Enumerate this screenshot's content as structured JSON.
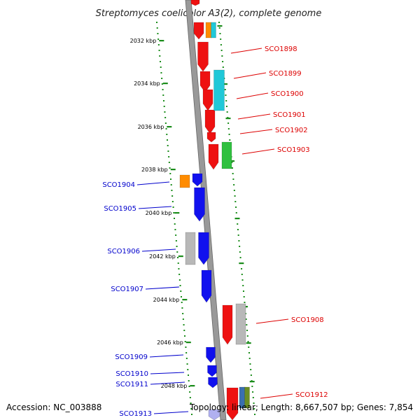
{
  "title": "Streptomyces coelicolor A3(2), complete genome",
  "accession": "Accession: NC_003888",
  "summary": "Topology: linear; Length: 8,667,507 bp; Genes: 7,854",
  "kbp_ticks": [
    "2032 kbp",
    "2034 kbp",
    "2036 kbp",
    "2038 kbp",
    "2040 kbp",
    "2042 kbp",
    "2044 kbp",
    "2046 kbp",
    "2048 kbp"
  ],
  "colors": {
    "forward_strand": "#ee1111",
    "reverse_strand": "#1111ee",
    "orange": "#ff8c00",
    "cyan": "#20c8d8",
    "green": "#30c040",
    "gray": "#b8b8b8",
    "olive": "#6b8e23",
    "tick": "#1a8c1a"
  },
  "right_labels": [
    "SCO1898",
    "SCO1899",
    "SCO1900",
    "SCO1901",
    "SCO1902",
    "SCO1903",
    "SCO1908",
    "SCO1912"
  ],
  "left_labels": [
    "SCO1904",
    "SCO1905",
    "SCO1906",
    "SCO1907",
    "SCO1909",
    "SCO1910",
    "SCO1911",
    "SCO1913"
  ]
}
